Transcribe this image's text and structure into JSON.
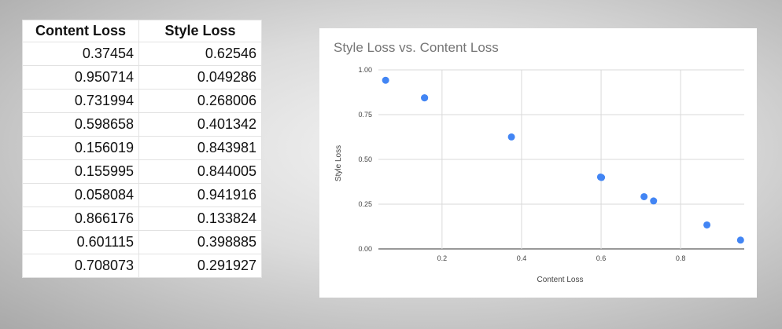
{
  "table": {
    "headers": [
      "Content Loss",
      "Style Loss"
    ],
    "rows": [
      [
        "0.37454",
        "0.62546"
      ],
      [
        "0.950714",
        "0.049286"
      ],
      [
        "0.731994",
        "0.268006"
      ],
      [
        "0.598658",
        "0.401342"
      ],
      [
        "0.156019",
        "0.843981"
      ],
      [
        "0.155995",
        "0.844005"
      ],
      [
        "0.058084",
        "0.941916"
      ],
      [
        "0.866176",
        "0.133824"
      ],
      [
        "0.601115",
        "0.398885"
      ],
      [
        "0.708073",
        "0.291927"
      ]
    ]
  },
  "chart_data": {
    "type": "scatter",
    "title": "Style Loss vs. Content Loss",
    "xlabel": "Content Loss",
    "ylabel": "Style Loss",
    "x": [
      0.37454,
      0.950714,
      0.731994,
      0.598658,
      0.156019,
      0.155995,
      0.058084,
      0.866176,
      0.601115,
      0.708073
    ],
    "y": [
      0.62546,
      0.049286,
      0.268006,
      0.401342,
      0.843981,
      0.844005,
      0.941916,
      0.133824,
      0.398885,
      0.291927
    ],
    "xlim": [
      0.04,
      0.96
    ],
    "ylim": [
      0,
      1
    ],
    "xticks": [
      "0.2",
      "0.4",
      "0.6",
      "0.8"
    ],
    "yticks": [
      "0.00",
      "0.25",
      "0.50",
      "0.75",
      "1.00"
    ],
    "grid": true,
    "point_color": "#4285f4"
  }
}
